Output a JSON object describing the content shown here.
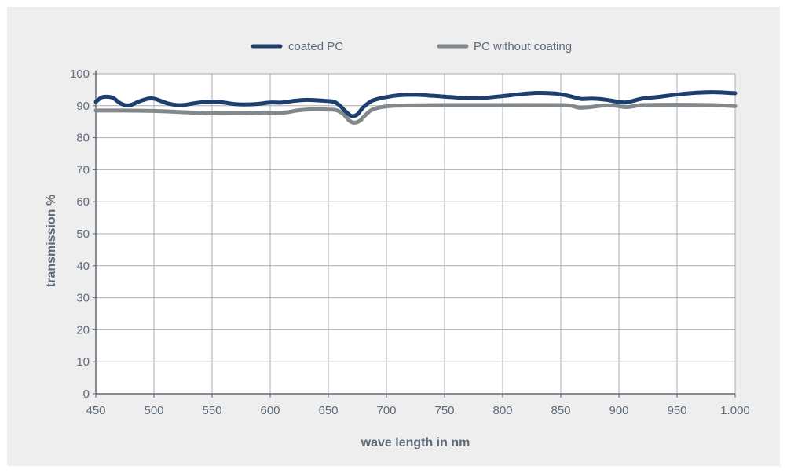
{
  "chart_data": {
    "type": "line",
    "xlabel": "wave length in nm",
    "ylabel": "transmission %",
    "xlim": [
      450,
      1000
    ],
    "ylim": [
      0,
      100
    ],
    "x_ticks": [
      {
        "value": 450,
        "label": "450"
      },
      {
        "value": 500,
        "label": "500"
      },
      {
        "value": 550,
        "label": "550"
      },
      {
        "value": 600,
        "label": "600"
      },
      {
        "value": 650,
        "label": "650"
      },
      {
        "value": 700,
        "label": "700"
      },
      {
        "value": 750,
        "label": "750"
      },
      {
        "value": 800,
        "label": "800"
      },
      {
        "value": 850,
        "label": "850"
      },
      {
        "value": 900,
        "label": "900"
      },
      {
        "value": 950,
        "label": "950"
      },
      {
        "value": 1000,
        "label": "1.000"
      }
    ],
    "y_ticks": [
      {
        "value": 0,
        "label": "0"
      },
      {
        "value": 10,
        "label": "10"
      },
      {
        "value": 20,
        "label": "20"
      },
      {
        "value": 30,
        "label": "30"
      },
      {
        "value": 40,
        "label": "40"
      },
      {
        "value": 50,
        "label": "50"
      },
      {
        "value": 60,
        "label": "60"
      },
      {
        "value": 70,
        "label": "70"
      },
      {
        "value": 80,
        "label": "80"
      },
      {
        "value": 90,
        "label": "90"
      },
      {
        "value": 100,
        "label": "100"
      }
    ],
    "grid": true,
    "legend_position": "top-center",
    "series": [
      {
        "name": "coated PC",
        "color": "#1d3f6e",
        "points": [
          [
            450,
            91.2
          ],
          [
            455,
            92.6
          ],
          [
            460,
            92.8
          ],
          [
            465,
            92.4
          ],
          [
            470,
            91.0
          ],
          [
            475,
            90.2
          ],
          [
            480,
            90.2
          ],
          [
            487,
            91.3
          ],
          [
            495,
            92.2
          ],
          [
            500,
            92.2
          ],
          [
            505,
            91.6
          ],
          [
            512,
            90.7
          ],
          [
            520,
            90.2
          ],
          [
            527,
            90.3
          ],
          [
            535,
            90.8
          ],
          [
            545,
            91.2
          ],
          [
            552,
            91.3
          ],
          [
            560,
            91.0
          ],
          [
            570,
            90.5
          ],
          [
            580,
            90.4
          ],
          [
            590,
            90.6
          ],
          [
            600,
            91.0
          ],
          [
            610,
            91.0
          ],
          [
            620,
            91.5
          ],
          [
            630,
            91.8
          ],
          [
            640,
            91.7
          ],
          [
            648,
            91.5
          ],
          [
            655,
            91.2
          ],
          [
            660,
            90.0
          ],
          [
            665,
            88.2
          ],
          [
            670,
            86.8
          ],
          [
            675,
            87.3
          ],
          [
            680,
            89.5
          ],
          [
            688,
            91.6
          ],
          [
            700,
            92.7
          ],
          [
            712,
            93.3
          ],
          [
            725,
            93.4
          ],
          [
            740,
            93.1
          ],
          [
            755,
            92.7
          ],
          [
            770,
            92.4
          ],
          [
            785,
            92.5
          ],
          [
            800,
            93.0
          ],
          [
            815,
            93.6
          ],
          [
            830,
            94.0
          ],
          [
            845,
            93.8
          ],
          [
            855,
            93.2
          ],
          [
            862,
            92.6
          ],
          [
            868,
            92.1
          ],
          [
            878,
            92.2
          ],
          [
            888,
            91.9
          ],
          [
            898,
            91.3
          ],
          [
            905,
            91.0
          ],
          [
            912,
            91.5
          ],
          [
            920,
            92.2
          ],
          [
            935,
            92.8
          ],
          [
            950,
            93.5
          ],
          [
            965,
            94.0
          ],
          [
            980,
            94.2
          ],
          [
            990,
            94.1
          ],
          [
            1000,
            93.9
          ]
        ]
      },
      {
        "name": "PC without coating",
        "color": "#83888d",
        "points": [
          [
            450,
            88.5
          ],
          [
            475,
            88.5
          ],
          [
            500,
            88.4
          ],
          [
            525,
            88.0
          ],
          [
            545,
            87.7
          ],
          [
            560,
            87.6
          ],
          [
            580,
            87.7
          ],
          [
            595,
            87.9
          ],
          [
            607,
            87.8
          ],
          [
            615,
            88.0
          ],
          [
            625,
            88.6
          ],
          [
            640,
            88.9
          ],
          [
            650,
            88.8
          ],
          [
            657,
            88.6
          ],
          [
            663,
            87.4
          ],
          [
            668,
            85.4
          ],
          [
            672,
            84.7
          ],
          [
            677,
            85.3
          ],
          [
            682,
            87.1
          ],
          [
            688,
            88.8
          ],
          [
            700,
            89.8
          ],
          [
            720,
            90.1
          ],
          [
            750,
            90.2
          ],
          [
            800,
            90.2
          ],
          [
            850,
            90.2
          ],
          [
            860,
            89.9
          ],
          [
            866,
            89.4
          ],
          [
            873,
            89.5
          ],
          [
            885,
            90.0
          ],
          [
            895,
            90.1
          ],
          [
            905,
            89.6
          ],
          [
            912,
            89.8
          ],
          [
            920,
            90.2
          ],
          [
            950,
            90.3
          ],
          [
            980,
            90.2
          ],
          [
            1000,
            89.9
          ]
        ]
      }
    ]
  }
}
